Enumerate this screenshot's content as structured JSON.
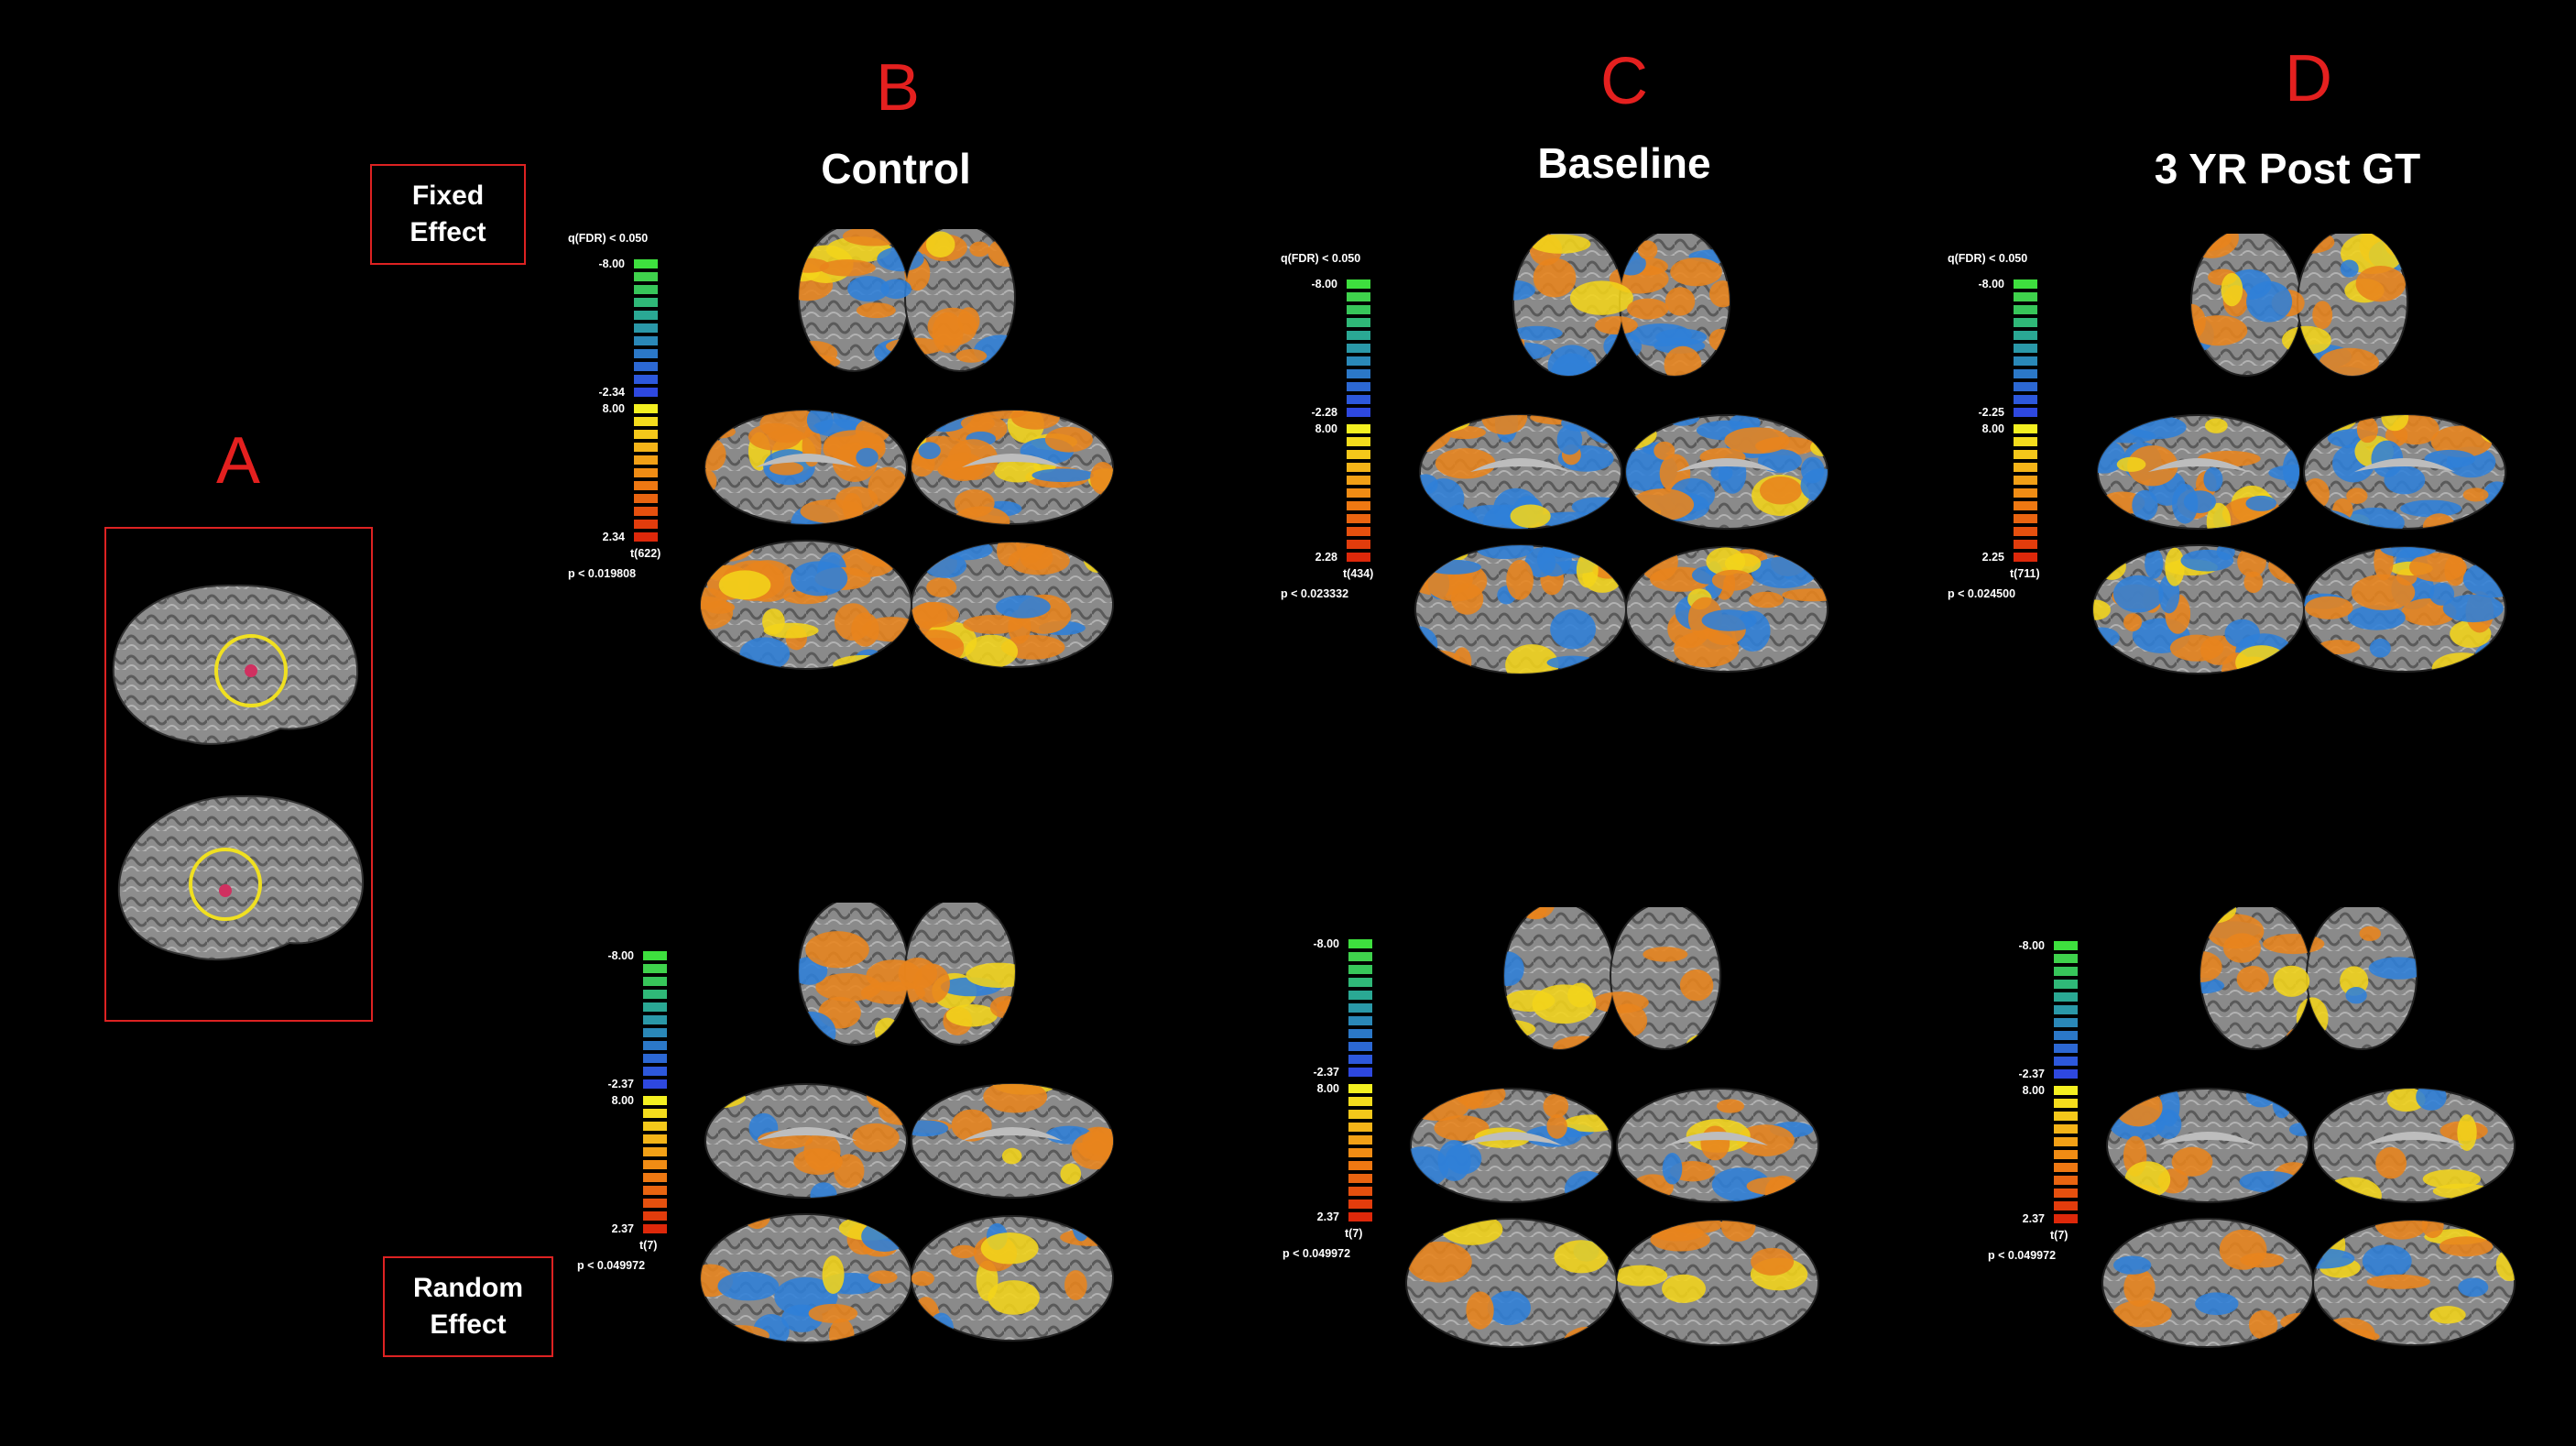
{
  "panels": {
    "a": {
      "letter": "A"
    },
    "b": {
      "letter": "B",
      "title": "Control"
    },
    "c": {
      "letter": "C",
      "title": "Baseline"
    },
    "d": {
      "letter": "D",
      "title": "3 YR Post GT"
    }
  },
  "effects": {
    "fixed": {
      "line1": "Fixed",
      "line2": "Effect"
    },
    "random": {
      "line1": "Random",
      "line2": "Effect"
    }
  },
  "colorbars": {
    "b_fixed": {
      "q": "q(FDR) < 0.050",
      "neg_max": "-8.00",
      "neg_min": "-2.34",
      "pos_max": "8.00",
      "pos_min": "2.34",
      "t": "t(622)",
      "p": "p < 0.019808"
    },
    "c_fixed": {
      "q": "q(FDR) < 0.050",
      "neg_max": "-8.00",
      "neg_min": "-2.28",
      "pos_max": "8.00",
      "pos_min": "2.28",
      "t": "t(434)",
      "p": "p < 0.023332"
    },
    "d_fixed": {
      "q": "q(FDR) < 0.050",
      "neg_max": "-8.00",
      "neg_min": "-2.25",
      "pos_max": "8.00",
      "pos_min": "2.25",
      "t": "t(711)",
      "p": "p < 0.024500"
    },
    "b_random": {
      "neg_max": "-8.00",
      "neg_min": "-2.37",
      "pos_max": "8.00",
      "pos_min": "2.37",
      "t": "t(7)",
      "p": "p < 0.049972"
    },
    "c_random": {
      "neg_max": "-8.00",
      "neg_min": "-2.37",
      "pos_max": "8.00",
      "pos_min": "2.37",
      "t": "t(7)",
      "p": "p < 0.049972"
    },
    "d_random": {
      "neg_max": "-8.00",
      "neg_min": "-2.37",
      "pos_max": "8.00",
      "pos_min": "2.37",
      "t": "t(7)",
      "p": "p < 0.049972"
    }
  },
  "colors": {
    "panel_letter": "#e4201f",
    "box_border": "#dd2222",
    "cortex": "#8a8a8a",
    "activation_orange": "#e8841c",
    "activation_yellow": "#f2d41a",
    "activation_blue": "#2f7fd8",
    "roi_circle": "#f0e020"
  },
  "icons": {
    "brain": "brain-surface-render"
  }
}
